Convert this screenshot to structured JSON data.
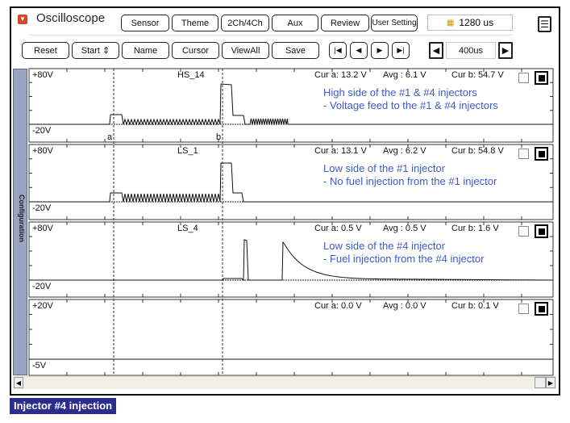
{
  "app": {
    "title": "Oscilloscope",
    "timebase_display": "1280 us"
  },
  "toolbar1": [
    "Sensor",
    "Theme",
    "2Ch/4Ch",
    "Aux",
    "Review",
    "User Setting"
  ],
  "toolbar2": {
    "reset": "Reset",
    "start": "Start",
    "name": "Name",
    "cursor": "Cursor",
    "viewall": "ViewAll",
    "save": "Save",
    "timescale": "400us"
  },
  "sidebar": {
    "label": "Configuration"
  },
  "channels": [
    {
      "name": "HS_14",
      "max": "+80V",
      "min": "-20V",
      "cur_a": "Cur a: 13.2 V",
      "avg": "Avg  : 6.1 V",
      "cur_b": "Cur b: 54.7 V",
      "note1": "High side of the #1 & #4 injectors",
      "note2": "- Voltage feed to the #1 & #4 injectors"
    },
    {
      "name": "LS_1",
      "max": "+80V",
      "min": "-20V",
      "cur_a": "Cur a: 13.1 V",
      "avg": "Avg  : 6.2 V",
      "cur_b": "Cur b: 54.8 V",
      "note1": "Low side of the #1 injector",
      "note2": "- No fuel injection from the #1 injector"
    },
    {
      "name": "LS_4",
      "max": "+80V",
      "min": "-20V",
      "cur_a": "Cur a: 0.5 V",
      "avg": "Avg  : 0.5 V",
      "cur_b": "Cur b: 1.6 V",
      "note1": "Low side of the #4 injector",
      "note2": "- Fuel injection from the #4 injector"
    },
    {
      "name": "",
      "max": "+20V",
      "min": "-5V",
      "cur_a": "Cur a: 0.0 V",
      "avg": "Avg  : 0.0 V",
      "cur_b": "Cur b: 0.1 V",
      "note1": "",
      "note2": ""
    }
  ],
  "cursors": {
    "a": "a",
    "b": "b"
  },
  "caption": "Injector #4 injection"
}
